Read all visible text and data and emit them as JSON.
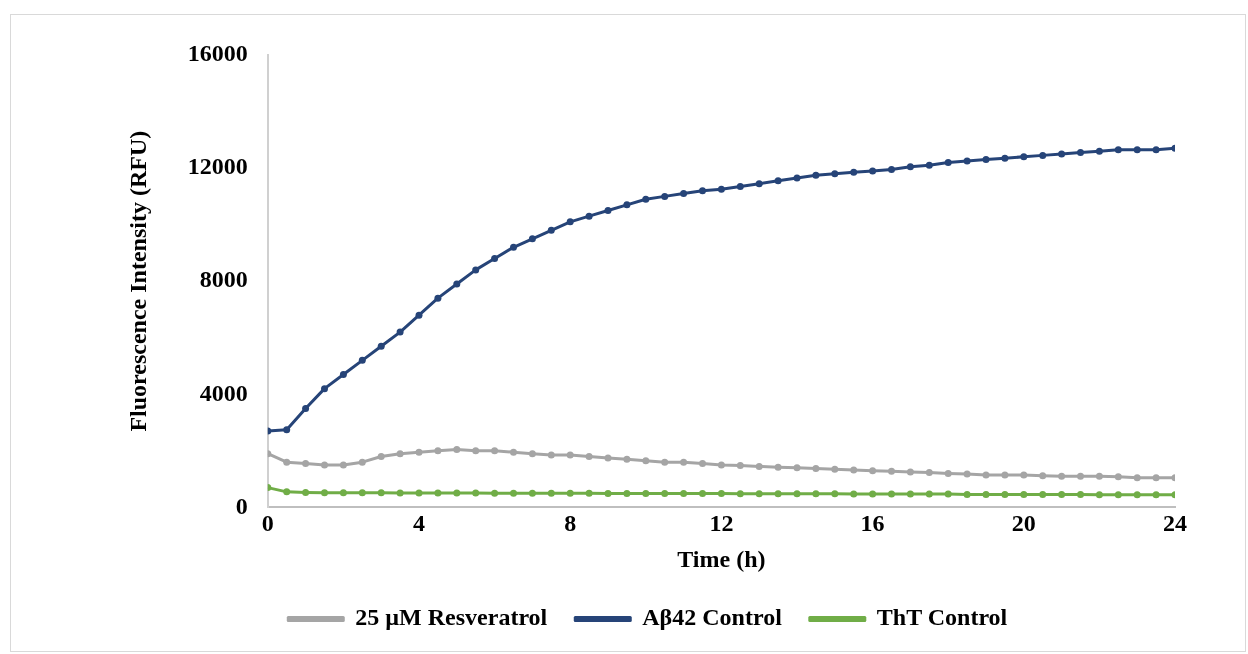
{
  "chart_data": {
    "type": "line",
    "xlabel": "Time (h)",
    "ylabel": "Fluorescence Intensity (RFU)",
    "x": [
      0,
      0.5,
      1,
      1.5,
      2,
      2.5,
      3,
      3.5,
      4,
      4.5,
      5,
      5.5,
      6,
      6.5,
      7,
      7.5,
      8,
      8.5,
      9,
      9.5,
      10,
      10.5,
      11,
      11.5,
      12,
      12.5,
      13,
      13.5,
      14,
      14.5,
      15,
      15.5,
      16,
      16.5,
      17,
      17.5,
      18,
      18.5,
      19,
      19.5,
      20,
      20.5,
      21,
      21.5,
      22,
      22.5,
      23,
      23.5,
      24
    ],
    "series": [
      {
        "name": "25 µM Resveratrol",
        "color": "#a5a5a5",
        "values": [
          1900,
          1600,
          1550,
          1500,
          1500,
          1600,
          1800,
          1900,
          1950,
          2000,
          2050,
          2000,
          2000,
          1950,
          1900,
          1850,
          1850,
          1800,
          1750,
          1700,
          1650,
          1600,
          1600,
          1550,
          1500,
          1480,
          1450,
          1420,
          1400,
          1380,
          1350,
          1320,
          1300,
          1280,
          1250,
          1230,
          1200,
          1180,
          1150,
          1150,
          1150,
          1120,
          1100,
          1100,
          1100,
          1080,
          1050,
          1050,
          1050
        ]
      },
      {
        "name": "Aβ42 Control",
        "color": "#264478",
        "values": [
          2700,
          2750,
          3500,
          4200,
          4700,
          5200,
          5700,
          6200,
          6800,
          7400,
          7900,
          8400,
          8800,
          9200,
          9500,
          9800,
          10100,
          10300,
          10500,
          10700,
          10900,
          11000,
          11100,
          11200,
          11250,
          11350,
          11450,
          11550,
          11650,
          11750,
          11800,
          11850,
          11900,
          11950,
          12050,
          12100,
          12200,
          12250,
          12300,
          12350,
          12400,
          12450,
          12500,
          12550,
          12600,
          12650,
          12650,
          12650,
          12700
        ]
      },
      {
        "name": "ThT Control",
        "color": "#70ad47",
        "values": [
          700,
          550,
          530,
          520,
          520,
          520,
          520,
          510,
          510,
          510,
          510,
          510,
          500,
          500,
          500,
          500,
          500,
          500,
          490,
          490,
          490,
          490,
          490,
          490,
          490,
          480,
          480,
          480,
          480,
          480,
          480,
          470,
          470,
          470,
          470,
          470,
          470,
          460,
          460,
          460,
          460,
          460,
          460,
          460,
          450,
          450,
          450,
          450,
          450
        ]
      }
    ],
    "xlim": [
      0,
      24
    ],
    "xticks": [
      0,
      4,
      8,
      12,
      16,
      20,
      24
    ],
    "ylim": [
      0,
      16000
    ],
    "yticks": [
      0,
      4000,
      8000,
      12000,
      16000
    ],
    "grid": false,
    "legend": "bottom",
    "marker": "circle",
    "line_style": "solid"
  }
}
